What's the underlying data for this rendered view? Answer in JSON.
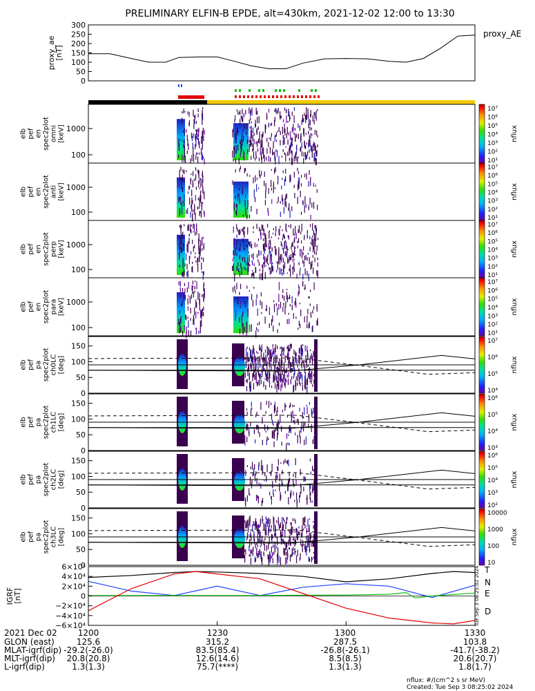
{
  "title": "PRELIMINARY ELFIN-B EPDE, alt=430km, 2021-12-02 12:00 to 13:30",
  "colors": {
    "black": "#000000",
    "blue": "#1f3fff",
    "green": "#10c010",
    "red": "#e00000",
    "gold": "#f0c800"
  },
  "ae_panel": {
    "ylabel": "proxy_ae\n[nT]",
    "legend": "proxy_AE",
    "yticks": [
      "300",
      "250",
      "200",
      "150",
      "100",
      "50",
      "0"
    ],
    "ylim": [
      0,
      300
    ]
  },
  "energy_panels": [
    {
      "ylabel": [
        "elb",
        "pef",
        "en",
        "spec2plot",
        "omni",
        "[keV]"
      ],
      "yticks": [
        "1000",
        "100"
      ],
      "cbar_ticks": [
        "10⁷",
        "10⁶",
        "10⁵",
        "10⁴",
        "10³",
        "10²",
        "10¹"
      ],
      "cbar_label": "nflux"
    },
    {
      "ylabel": [
        "elb",
        "pef",
        "en",
        "spec2plot",
        "anti",
        "[keV]"
      ],
      "yticks": [
        "1000",
        "100"
      ],
      "cbar_ticks": [
        "10⁷",
        "10⁶",
        "10⁵",
        "10⁴",
        "10³",
        "10²",
        "10¹"
      ],
      "cbar_label": "nflux"
    },
    {
      "ylabel": [
        "elb",
        "pef",
        "en",
        "spec2plot",
        "perp",
        "[keV]"
      ],
      "yticks": [
        "1000",
        "100"
      ],
      "cbar_ticks": [
        "10⁷",
        "10⁶",
        "10⁵",
        "10⁴",
        "10³",
        "10²",
        "10¹"
      ],
      "cbar_label": "nflux"
    },
    {
      "ylabel": [
        "elb",
        "pef",
        "en",
        "spec2plot",
        "para",
        "[keV]"
      ],
      "yticks": [
        "1000",
        "100"
      ],
      "cbar_ticks": [
        "10⁷",
        "10⁶",
        "10⁵",
        "10⁴",
        "10³",
        "10²",
        "10¹"
      ],
      "cbar_label": "nflux"
    }
  ],
  "pa_panels": [
    {
      "ylabel": [
        "elb",
        "pef",
        "pa",
        "spec2plot",
        "ch0LC",
        "[deg]"
      ],
      "yticks": [
        "150",
        "100",
        "50",
        "0"
      ],
      "cbar_ticks": [
        "10⁷",
        "10⁶",
        "10⁵",
        "10⁴"
      ],
      "cbar_label": "nflux"
    },
    {
      "ylabel": [
        "elb",
        "pef",
        "pa",
        "spec2plot",
        "ch1LC",
        "[deg]"
      ],
      "yticks": [
        "150",
        "100",
        "50",
        "0"
      ],
      "cbar_ticks": [
        "10⁶",
        "10⁵",
        "10⁴",
        "10³"
      ],
      "cbar_label": "nflux"
    },
    {
      "ylabel": [
        "elb",
        "pef",
        "pa",
        "spec2plot",
        "ch2LC",
        "[deg]"
      ],
      "yticks": [
        "150",
        "100",
        "50",
        "0"
      ],
      "cbar_ticks": [
        "10⁶",
        "10⁵",
        "10⁴",
        "10³",
        "10²"
      ],
      "cbar_label": "nflux"
    },
    {
      "ylabel": [
        "elb",
        "pef",
        "pa",
        "spec2plot",
        "ch3LC",
        "[deg]"
      ],
      "yticks": [
        "150",
        "100",
        "50",
        "0"
      ],
      "cbar_ticks": [
        "10000",
        "1000",
        "100",
        "10"
      ],
      "cbar_label": "nflux"
    }
  ],
  "igrf_panel": {
    "ylabel": "IGRF\n[nT]",
    "yticks": [
      "6×10⁴",
      "4×10⁴",
      "2×10⁴",
      "0",
      "−2×10⁴",
      "−4×10⁴",
      "−6×10⁴"
    ],
    "legend": [
      "T",
      "N",
      "E",
      "D"
    ],
    "side_note": "Tue Sep 3 08:25:02 2024"
  },
  "x_axis": {
    "ticks": [
      "1200",
      "1230",
      "1300",
      "1330"
    ],
    "date_label": "2021 Dec 02"
  },
  "ephemeris": [
    {
      "label": "GLON (east)",
      "values": [
        "125.6",
        "315.2",
        "287.5",
        "103.8"
      ]
    },
    {
      "label": "MLAT-igrf(dip)",
      "values": [
        "-29.2(-26.0)",
        "83.5(85.4)",
        "-26.8(-26.1)",
        "-41.7(-38.2)"
      ]
    },
    {
      "label": "MLT-igrf(dip)",
      "values": [
        "20.8(20.8)",
        "12.6(14.6)",
        "8.5(8.5)",
        "20.6(20.7)"
      ]
    },
    {
      "label": "L-igrf(dip)",
      "values": [
        "1.3(1.3)",
        "75.7(****)",
        "1.3(1.3)",
        "1.8(1.7)"
      ]
    }
  ],
  "footer": {
    "units": "nflux: #/(cm^2 s sr MeV)",
    "created": "Created: Tue Sep  3 08:25:02 2024"
  },
  "chart_data": {
    "type": "line",
    "title": "PRELIMINARY ELFIN-B EPDE, alt=430km, 2021-12-02 12:00 to 13:30",
    "x_range": [
      "12:00",
      "13:30"
    ],
    "series": [
      {
        "name": "proxy_AE",
        "x": [
          "12:00",
          "12:05",
          "12:10",
          "12:14",
          "12:18",
          "12:21",
          "12:26",
          "12:30",
          "12:34",
          "12:38",
          "12:42",
          "12:46",
          "12:50",
          "12:55",
          "13:00",
          "13:05",
          "13:10",
          "13:14",
          "13:18",
          "13:22",
          "13:26",
          "13:30"
        ],
        "values": [
          145,
          145,
          120,
          100,
          100,
          125,
          128,
          128,
          105,
          80,
          65,
          65,
          95,
          118,
          120,
          118,
          105,
          100,
          120,
          175,
          240,
          245
        ]
      },
      {
        "name": "T",
        "panel": "IGRF",
        "x": [
          "12:00",
          "12:10",
          "12:20",
          "12:25",
          "12:30",
          "12:40",
          "12:50",
          "13:00",
          "13:10",
          "13:20",
          "13:25",
          "13:30"
        ],
        "values": [
          38000,
          42000,
          48000,
          50000,
          49000,
          46000,
          40000,
          29000,
          35000,
          46000,
          50000,
          48000
        ]
      },
      {
        "name": "N",
        "panel": "IGRF",
        "x": [
          "12:00",
          "12:10",
          "12:20",
          "12:30",
          "12:40",
          "12:50",
          "13:00",
          "13:10",
          "13:20",
          "13:30"
        ],
        "values": [
          30000,
          10000,
          1000,
          20000,
          1000,
          18000,
          25000,
          20000,
          -3000,
          22000
        ]
      },
      {
        "name": "E",
        "panel": "IGRF",
        "x": [
          "12:00",
          "12:20",
          "12:40",
          "13:00",
          "13:10",
          "13:14",
          "13:16",
          "13:20",
          "13:30"
        ],
        "values": [
          1000,
          1000,
          1000,
          2000,
          3500,
          7000,
          -4000,
          0,
          6000
        ]
      },
      {
        "name": "D",
        "panel": "IGRF",
        "x": [
          "12:00",
          "12:10",
          "12:20",
          "12:25",
          "12:30",
          "12:40",
          "12:50",
          "13:00",
          "13:10",
          "13:20",
          "13:25",
          "13:30"
        ],
        "values": [
          -30000,
          15000,
          45000,
          50000,
          45000,
          35000,
          5000,
          -25000,
          -45000,
          -55000,
          -57000,
          -50000
        ]
      }
    ],
    "ylim_ae": [
      0,
      300
    ],
    "ylim_igrf": [
      -60000,
      60000
    ],
    "pa_reference_lines_deg": {
      "solid": [
        73,
        90
      ],
      "dashed": [
        110
      ]
    }
  }
}
